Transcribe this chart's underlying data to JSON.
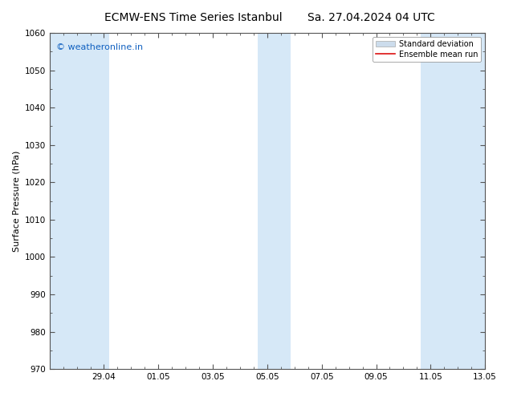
{
  "title_left": "ECMW-ENS Time Series Istanbul",
  "title_right": "Sa. 27.04.2024 04 UTC",
  "ylabel": "Surface Pressure (hPa)",
  "ylim": [
    970,
    1060
  ],
  "yticks": [
    970,
    980,
    990,
    1000,
    1010,
    1020,
    1030,
    1040,
    1050,
    1060
  ],
  "xtick_labels": [
    "29.04",
    "01.05",
    "03.05",
    "05.05",
    "07.05",
    "09.05",
    "11.05",
    "13.05"
  ],
  "watermark_text": "© weatheronline.in",
  "watermark_color": "#1060c0",
  "legend_std_color": "#ccdcec",
  "legend_std_edge": "#aaaaaa",
  "legend_mean_color": "#dd1111",
  "background_color": "#ffffff",
  "plot_bg_color": "#ffffff",
  "shade_color": "#d6e8f7",
  "title_fontsize": 10,
  "axis_label_fontsize": 8,
  "tick_fontsize": 7.5,
  "watermark_fontsize": 8
}
